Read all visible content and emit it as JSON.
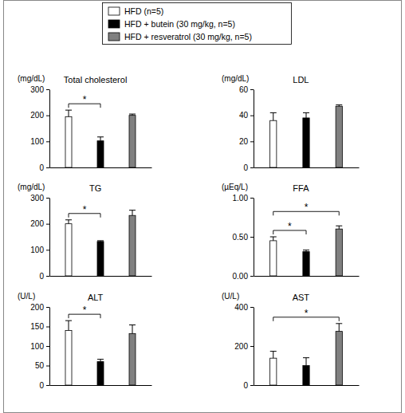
{
  "chart_data": [
    {
      "type": "bar",
      "title": "Total cholesterol",
      "ylabel": "(mg/dL)",
      "legend": "top",
      "categories": [
        null
      ],
      "ylim": [
        0,
        300
      ],
      "yticks": [
        0,
        100,
        200,
        300
      ],
      "series": [
        {
          "name": "HFD (n=5)",
          "color": "#ffffff",
          "values": [
            195
          ],
          "error": [
            25
          ]
        },
        {
          "name": "HFD + butein (30 mg/kg, n=5)",
          "color": "#000000",
          "values": [
            102
          ],
          "error": [
            15
          ]
        },
        {
          "name": "HFD + resveratrol (30 mg/kg, n=5)",
          "color": "#808080",
          "values": [
            200
          ],
          "error": [
            5
          ]
        }
      ],
      "annotations": [
        {
          "text": "*",
          "series": [
            0,
            1
          ]
        }
      ]
    },
    {
      "type": "bar",
      "title": "LDL",
      "ylabel": "(mg/dL)",
      "categories": [
        null
      ],
      "ylim": [
        0,
        60
      ],
      "yticks": [
        0,
        20,
        40,
        60
      ],
      "series": [
        {
          "color": "#ffffff",
          "values": [
            36
          ],
          "error": [
            6
          ]
        },
        {
          "color": "#000000",
          "values": [
            38
          ],
          "error": [
            4
          ]
        },
        {
          "color": "#808080",
          "values": [
            47
          ],
          "error": [
            1
          ]
        }
      ]
    },
    {
      "type": "bar",
      "title": "TG",
      "ylabel": "(mg/dL)",
      "categories": [
        null
      ],
      "ylim": [
        0,
        300
      ],
      "yticks": [
        0,
        100,
        200,
        300
      ],
      "series": [
        {
          "color": "#ffffff",
          "values": [
            200
          ],
          "error": [
            15
          ]
        },
        {
          "color": "#000000",
          "values": [
            132
          ],
          "error": [
            3
          ]
        },
        {
          "color": "#808080",
          "values": [
            232
          ],
          "error": [
            20
          ]
        }
      ],
      "annotations": [
        {
          "text": "*",
          "series": [
            0,
            1
          ]
        }
      ]
    },
    {
      "type": "bar",
      "title": "FFA",
      "ylabel": "(µEq/L)",
      "categories": [
        null
      ],
      "ylim": [
        0,
        1
      ],
      "yticks": [
        {
          "value": 0,
          "label": "0.00"
        },
        {
          "value": 0.5,
          "label": "0.50"
        },
        {
          "value": 1,
          "label": "1.00"
        }
      ],
      "series": [
        {
          "color": "#ffffff",
          "values": [
            0.45
          ],
          "error": [
            0.05
          ]
        },
        {
          "color": "#000000",
          "values": [
            0.31
          ],
          "error": [
            0.02
          ]
        },
        {
          "color": "#808080",
          "values": [
            0.6
          ],
          "error": [
            0.04
          ]
        }
      ],
      "annotations": [
        {
          "text": "*",
          "series": [
            0,
            1
          ]
        },
        {
          "text": "*",
          "series": [
            0,
            2
          ]
        }
      ]
    },
    {
      "type": "bar",
      "title": "ALT",
      "ylabel": "(U/L)",
      "categories": [
        null
      ],
      "ylim": [
        0,
        200
      ],
      "yticks": [
        0,
        50,
        100,
        150,
        200
      ],
      "series": [
        {
          "color": "#ffffff",
          "values": [
            140
          ],
          "error": [
            25
          ]
        },
        {
          "color": "#000000",
          "values": [
            60
          ],
          "error": [
            6
          ]
        },
        {
          "color": "#808080",
          "values": [
            132
          ],
          "error": [
            22
          ]
        }
      ],
      "annotations": [
        {
          "text": "*",
          "series": [
            0,
            1
          ]
        }
      ]
    },
    {
      "type": "bar",
      "title": "AST",
      "ylabel": "(U/L)",
      "categories": [
        null
      ],
      "ylim": [
        0,
        400
      ],
      "yticks": [
        0,
        200,
        400
      ],
      "series": [
        {
          "color": "#ffffff",
          "values": [
            138
          ],
          "error": [
            35
          ]
        },
        {
          "color": "#000000",
          "values": [
            100
          ],
          "error": [
            40
          ]
        },
        {
          "color": "#808080",
          "values": [
            275
          ],
          "error": [
            40
          ]
        }
      ],
      "annotations": [
        {
          "text": "*",
          "series": [
            0,
            2
          ]
        }
      ]
    }
  ]
}
